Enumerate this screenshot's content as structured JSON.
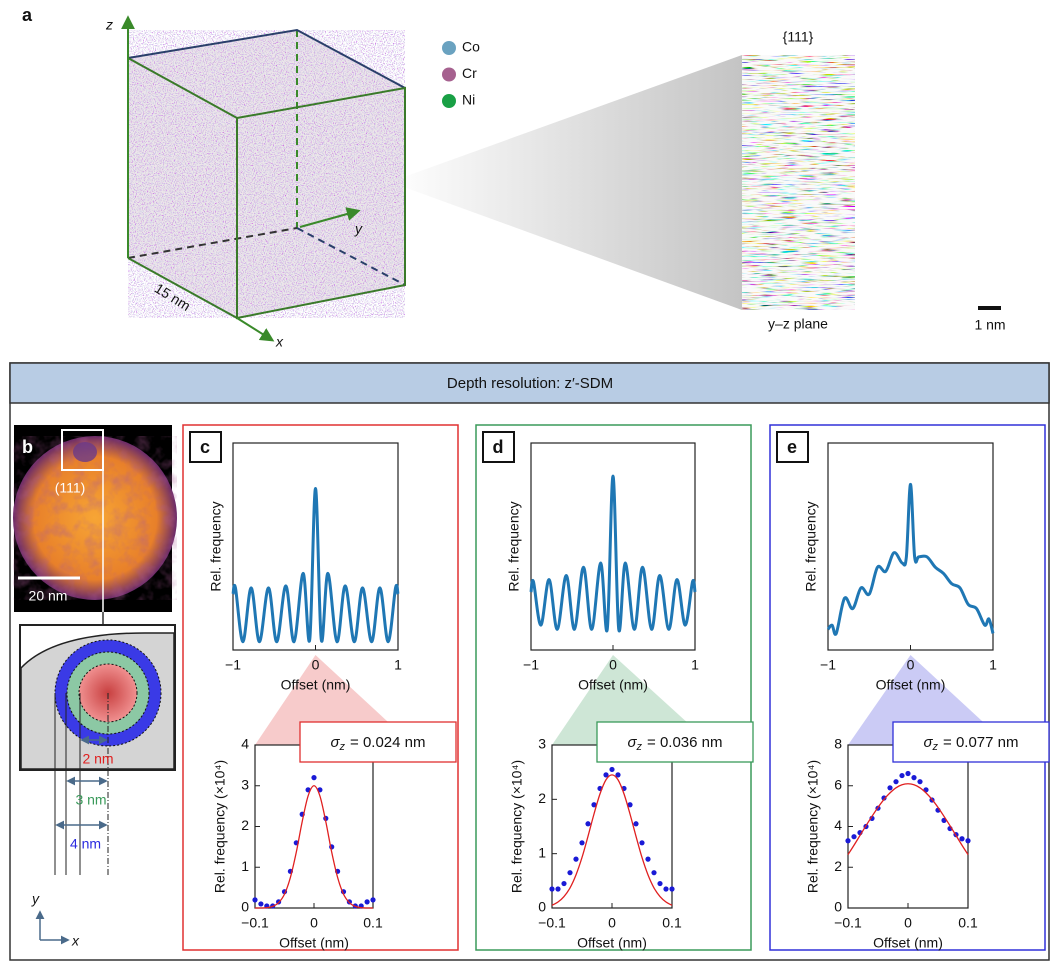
{
  "panel_a": {
    "label": "a",
    "axis_z": "z",
    "axis_y": "y",
    "axis_x": "x",
    "size_label": "15 nm",
    "legend": [
      {
        "name": "Co",
        "color": "#6aa2c0"
      },
      {
        "name": "Cr",
        "color": "#a6618f"
      },
      {
        "name": "Ni",
        "color": "#19a045"
      }
    ],
    "plane_title": "{111}",
    "plane_label": "y–z plane",
    "scale_label": "1 nm"
  },
  "header": "Depth resolution: z′-SDM",
  "panel_b": {
    "label": "b",
    "orientation": "(111)",
    "scale_label": "20 nm",
    "radii": [
      {
        "label": "2 nm",
        "color": "#e02020"
      },
      {
        "label": "3 nm",
        "color": "#3a9a5a"
      },
      {
        "label": "4 nm",
        "color": "#2a2ae0"
      }
    ],
    "axis_y": "y",
    "axis_x": "x"
  },
  "panels": [
    {
      "label": "c",
      "color": "#e03030",
      "sigma": "σ",
      "sigma_sub": "z",
      "fit": "= 0.024 nm"
    },
    {
      "label": "d",
      "color": "#3a9a5a",
      "sigma": "σ",
      "sigma_sub": "z",
      "fit": "= 0.036 nm"
    },
    {
      "label": "e",
      "color": "#3030d8",
      "sigma": "σ",
      "sigma_sub": "z",
      "fit": "= 0.077 nm"
    }
  ],
  "chart_data": [
    {
      "type": "line",
      "x_label": "Offset (nm)",
      "y_label": "Rel. frequency",
      "x": [
        -1,
        -0.97,
        -0.88,
        -0.78,
        -0.68,
        -0.57,
        -0.47,
        -0.36,
        -0.26,
        -0.15,
        -0.07,
        0,
        0.07,
        0.15,
        0.26,
        0.36,
        0.47,
        0.57,
        0.68,
        0.78,
        0.88,
        0.97,
        1
      ],
      "series": [
        {
          "color": "#1f77b4",
          "values": [
            0.27,
            0.3,
            0.04,
            0.3,
            0.04,
            0.3,
            0.04,
            0.31,
            0.04,
            0.37,
            0.05,
            0.78,
            0.05,
            0.37,
            0.04,
            0.31,
            0.04,
            0.3,
            0.04,
            0.3,
            0.04,
            0.3,
            0.27
          ]
        }
      ],
      "xlim": [
        -1,
        1
      ],
      "ylim": [
        0,
        1
      ],
      "xticks": [
        {
          "value": -1,
          "label": "−1"
        },
        0,
        1
      ]
    },
    {
      "type": "line",
      "x_label": "Offset (nm)",
      "y_label": "Rel. frequency",
      "x": [
        -1,
        -0.97,
        -0.88,
        -0.78,
        -0.68,
        -0.57,
        -0.47,
        -0.36,
        -0.26,
        -0.15,
        -0.07,
        0,
        0.07,
        0.15,
        0.26,
        0.36,
        0.47,
        0.57,
        0.68,
        0.78,
        0.88,
        0.97,
        1
      ],
      "series": [
        {
          "color": "#1f77b4",
          "values": [
            0.28,
            0.33,
            0.12,
            0.34,
            0.1,
            0.36,
            0.1,
            0.4,
            0.1,
            0.42,
            0.1,
            0.84,
            0.1,
            0.42,
            0.1,
            0.4,
            0.1,
            0.36,
            0.1,
            0.34,
            0.12,
            0.33,
            0.28
          ]
        }
      ],
      "xlim": [
        -1,
        1
      ],
      "ylim": [
        0,
        1
      ],
      "xticks": [
        {
          "value": -1,
          "label": "−1"
        },
        0,
        1
      ]
    },
    {
      "type": "line",
      "x_label": "Offset (nm)",
      "y_label": "Rel. frequency",
      "x": [
        -1,
        -0.95,
        -0.9,
        -0.8,
        -0.7,
        -0.6,
        -0.5,
        -0.4,
        -0.3,
        -0.2,
        -0.1,
        -0.05,
        0,
        0.05,
        0.1,
        0.2,
        0.3,
        0.4,
        0.5,
        0.6,
        0.7,
        0.8,
        0.9,
        0.95,
        1
      ],
      "series": [
        {
          "color": "#1f77b4",
          "values": [
            0.1,
            0.12,
            0.08,
            0.25,
            0.2,
            0.3,
            0.27,
            0.4,
            0.38,
            0.47,
            0.42,
            0.45,
            0.8,
            0.45,
            0.45,
            0.45,
            0.4,
            0.37,
            0.32,
            0.3,
            0.22,
            0.2,
            0.12,
            0.15,
            0.08
          ]
        }
      ],
      "xlim": [
        -1,
        1
      ],
      "ylim": [
        0,
        1
      ],
      "xticks": [
        {
          "value": -1,
          "label": "−1"
        },
        0,
        1
      ]
    },
    {
      "type": "scatter",
      "x_label": "Offset (nm)",
      "y_label": "Rel. frequency (×10⁴)",
      "x": [
        -0.1,
        -0.09,
        -0.08,
        -0.07,
        -0.06,
        -0.05,
        -0.04,
        -0.03,
        -0.02,
        -0.01,
        0,
        0.01,
        0.02,
        0.03,
        0.04,
        0.05,
        0.06,
        0.07,
        0.08,
        0.09,
        0.1
      ],
      "series": [
        {
          "type": "scatter",
          "color": "#1a1ad6",
          "values": [
            0.2,
            0.1,
            0.05,
            0.05,
            0.15,
            0.4,
            0.9,
            1.6,
            2.3,
            2.9,
            3.2,
            2.9,
            2.2,
            1.5,
            0.9,
            0.4,
            0.15,
            0.05,
            0.05,
            0.15,
            0.2
          ]
        },
        {
          "type": "line",
          "color": "#e02020",
          "values": [
            0,
            0,
            0.01,
            0.04,
            0.13,
            0.34,
            0.75,
            1.37,
            2.12,
            2.75,
            3,
            2.75,
            2.12,
            1.37,
            0.75,
            0.34,
            0.13,
            0.04,
            0.01,
            0,
            0
          ]
        }
      ],
      "xlim": [
        -0.1,
        0.1
      ],
      "ylim": [
        0,
        4
      ],
      "xticks": [
        {
          "value": -0.1,
          "label": "−0.1"
        },
        0,
        0.1
      ],
      "yticks": [
        0,
        1,
        2,
        3,
        4
      ]
    },
    {
      "type": "scatter",
      "x_label": "Offset (nm)",
      "y_label": "Rel. frequency (×10⁴)",
      "x": [
        -0.1,
        -0.09,
        -0.08,
        -0.07,
        -0.06,
        -0.05,
        -0.04,
        -0.03,
        -0.02,
        -0.01,
        0,
        0.01,
        0.02,
        0.03,
        0.04,
        0.05,
        0.06,
        0.07,
        0.08,
        0.09,
        0.1
      ],
      "series": [
        {
          "type": "scatter",
          "color": "#1a1ad6",
          "values": [
            0.35,
            0.35,
            0.45,
            0.65,
            0.9,
            1.2,
            1.55,
            1.9,
            2.2,
            2.45,
            2.55,
            2.45,
            2.2,
            1.9,
            1.55,
            1.2,
            0.9,
            0.65,
            0.45,
            0.35,
            0.35
          ]
        },
        {
          "type": "line",
          "color": "#e02020",
          "values": [
            0.05,
            0.11,
            0.21,
            0.37,
            0.61,
            0.93,
            1.32,
            1.73,
            2.1,
            2.36,
            2.45,
            2.36,
            2.1,
            1.73,
            1.32,
            0.93,
            0.61,
            0.37,
            0.21,
            0.11,
            0.05
          ]
        }
      ],
      "xlim": [
        -0.1,
        0.1
      ],
      "ylim": [
        0,
        3
      ],
      "xticks": [
        {
          "value": -0.1,
          "label": "−0.1"
        },
        0,
        0.1
      ],
      "yticks": [
        0,
        1,
        2,
        3
      ]
    },
    {
      "type": "scatter",
      "x_label": "Offset (nm)",
      "y_label": "Rel. frequency (×10⁴)",
      "x": [
        -0.1,
        -0.09,
        -0.08,
        -0.07,
        -0.06,
        -0.05,
        -0.04,
        -0.03,
        -0.02,
        -0.01,
        0,
        0.01,
        0.02,
        0.03,
        0.04,
        0.05,
        0.06,
        0.07,
        0.08,
        0.09,
        0.1
      ],
      "series": [
        {
          "type": "scatter",
          "color": "#1a1ad6",
          "values": [
            3.3,
            3.5,
            3.7,
            4.0,
            4.4,
            4.9,
            5.4,
            5.9,
            6.2,
            6.5,
            6.6,
            6.4,
            6.2,
            5.8,
            5.3,
            4.8,
            4.3,
            3.9,
            3.6,
            3.4,
            3.3
          ]
        },
        {
          "type": "line",
          "color": "#e02020",
          "values": [
            2.62,
            3.08,
            3.56,
            4.04,
            4.5,
            4.94,
            5.33,
            5.65,
            5.9,
            6.05,
            6.1,
            6.05,
            5.9,
            5.65,
            5.33,
            4.94,
            4.5,
            4.04,
            3.56,
            3.08,
            2.62
          ]
        }
      ],
      "xlim": [
        -0.1,
        0.1
      ],
      "ylim": [
        0,
        8
      ],
      "xticks": [
        {
          "value": -0.1,
          "label": "−0.1"
        },
        0,
        0.1
      ],
      "yticks": [
        0,
        2,
        4,
        6,
        8
      ]
    }
  ]
}
